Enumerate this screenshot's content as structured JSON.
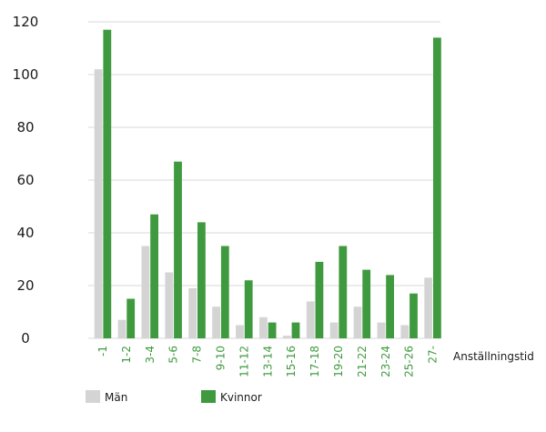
{
  "chart_data": {
    "type": "bar",
    "categories": [
      "-1",
      "1-2",
      "3-4",
      "5-6",
      "7-8",
      "9-10",
      "11-12",
      "13-14",
      "15-16",
      "17-18",
      "19-20",
      "21-22",
      "23-24",
      "25-26",
      "27-"
    ],
    "series": [
      {
        "name": "Män",
        "color": "#d4d4d4",
        "values": [
          102,
          7,
          35,
          25,
          19,
          12,
          5,
          8,
          1,
          14,
          6,
          12,
          6,
          5,
          23
        ]
      },
      {
        "name": "Kvinnor",
        "color": "#3f9a3f",
        "values": [
          117,
          15,
          47,
          67,
          44,
          35,
          22,
          6,
          6,
          29,
          35,
          26,
          24,
          17,
          114
        ]
      }
    ],
    "xlabel": "Anställningstid",
    "ylabel": "",
    "ylim": [
      0,
      120
    ],
    "yticks": [
      0,
      20,
      40,
      60,
      80,
      100,
      120
    ],
    "grid": true,
    "legend_position": "bottom-left",
    "tick_label_color": "#3f9a3f"
  }
}
